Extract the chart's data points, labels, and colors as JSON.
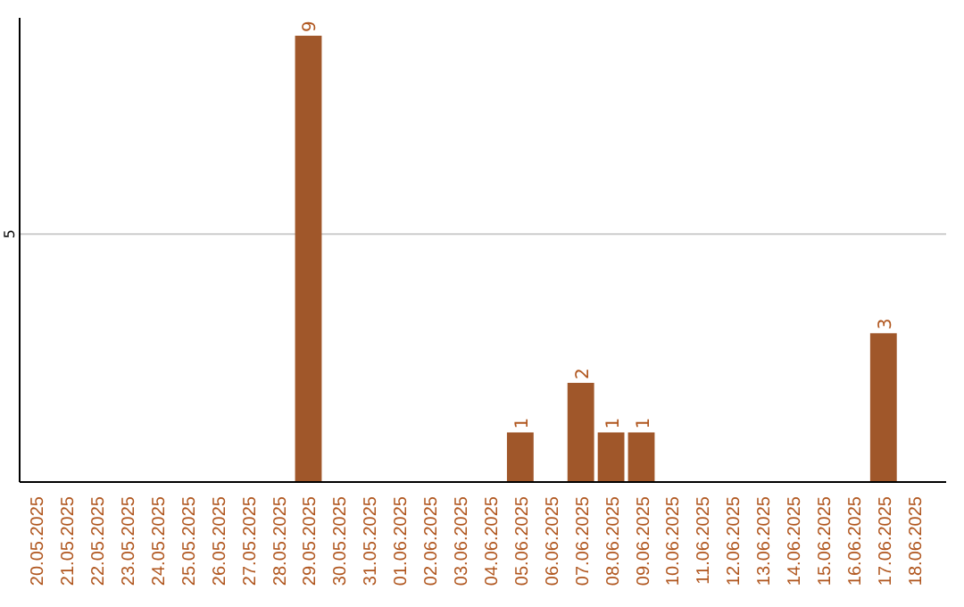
{
  "chart_data": {
    "type": "bar",
    "categories": [
      "20.05.2025",
      "21.05.2025",
      "22.05.2025",
      "23.05.2025",
      "24.05.2025",
      "25.05.2025",
      "26.05.2025",
      "27.05.2025",
      "28.05.2025",
      "29.05.2025",
      "30.05.2025",
      "31.05.2025",
      "01.06.2025",
      "02.06.2025",
      "03.06.2025",
      "04.06.2025",
      "05.06.2025",
      "06.06.2025",
      "07.06.2025",
      "08.06.2025",
      "09.06.2025",
      "10.06.2025",
      "11.06.2025",
      "12.06.2025",
      "13.06.2025",
      "14.06.2025",
      "15.06.2025",
      "16.06.2025",
      "17.06.2025",
      "18.06.2025"
    ],
    "values": [
      0,
      0,
      0,
      0,
      0,
      0,
      0,
      0,
      0,
      9,
      0,
      0,
      0,
      0,
      0,
      0,
      1,
      0,
      2,
      1,
      1,
      0,
      0,
      0,
      0,
      0,
      0,
      0,
      3,
      0
    ],
    "value_labels": [
      null,
      null,
      null,
      null,
      null,
      null,
      null,
      null,
      null,
      "9",
      null,
      null,
      null,
      null,
      null,
      null,
      "1",
      null,
      "2",
      "1",
      "1",
      null,
      null,
      null,
      null,
      null,
      null,
      null,
      "3",
      null
    ],
    "color": "#a0572a",
    "ylim": [
      0,
      9
    ],
    "yticks": [
      5
    ],
    "grid": "y"
  }
}
